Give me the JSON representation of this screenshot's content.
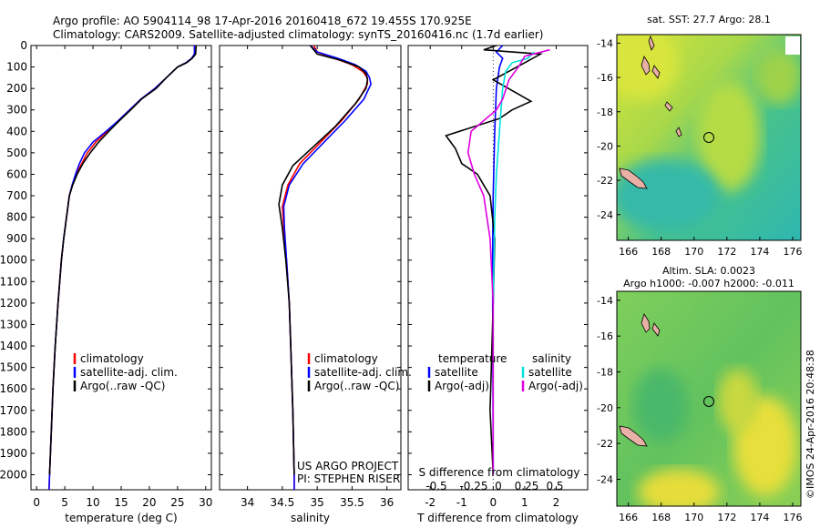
{
  "title": {
    "line1": "Argo profile: AO 5904114_98 17-Apr-2016 20160418_672 19.455S 170.925E",
    "line2": "Climatology: CARS2009. Satellite-adjusted climatology: synTS_20160416.nc (1.7d earlier)"
  },
  "colors": {
    "climatology": "#ff0000",
    "satellite": "#0000ff",
    "argo": "#000000",
    "sal_satellite": "#00e0e0",
    "sal_argo": "#e000e0"
  },
  "chart_data": [
    {
      "type": "line",
      "xlabel": "temperature (deg C)",
      "ylabel": "",
      "xlim": [
        -1,
        31
      ],
      "ylim": [
        2070,
        0
      ],
      "xticks": [
        0,
        5,
        10,
        15,
        20,
        25,
        30
      ],
      "yticks": [
        0,
        100,
        200,
        300,
        400,
        500,
        600,
        700,
        800,
        900,
        1000,
        1100,
        1200,
        1300,
        1400,
        1500,
        1600,
        1700,
        1800,
        1900,
        2000
      ],
      "legend": [
        "climatology",
        "satellite-adj. clim.",
        "Argo(..raw -QC)"
      ],
      "legend_position": "bottom-center",
      "series": [
        {
          "name": "climatology",
          "color": "#ff0000",
          "points": [
            [
              28,
              0
            ],
            [
              28,
              40
            ],
            [
              27.5,
              60
            ],
            [
              26.5,
              80
            ],
            [
              25,
              100
            ],
            [
              23,
              150
            ],
            [
              21,
              200
            ],
            [
              18.5,
              250
            ],
            [
              16.5,
              300
            ],
            [
              14.5,
              350
            ],
            [
              12.5,
              400
            ],
            [
              10.5,
              450
            ],
            [
              9,
              500
            ],
            [
              8,
              550
            ],
            [
              7,
              600
            ],
            [
              6.3,
              650
            ],
            [
              5.8,
              700
            ],
            [
              5.3,
              800
            ],
            [
              4.8,
              900
            ],
            [
              4.4,
              1000
            ],
            [
              3.8,
              1200
            ],
            [
              3.3,
              1400
            ],
            [
              2.9,
              1600
            ],
            [
              2.6,
              1800
            ],
            [
              2.3,
              2000
            ],
            [
              2.2,
              2070
            ]
          ]
        },
        {
          "name": "satellite-adj. clim.",
          "color": "#0000ff",
          "points": [
            [
              28,
              0
            ],
            [
              28,
              40
            ],
            [
              27.5,
              60
            ],
            [
              26.5,
              80
            ],
            [
              25,
              100
            ],
            [
              23,
              150
            ],
            [
              21,
              200
            ],
            [
              18.5,
              250
            ],
            [
              16.5,
              300
            ],
            [
              14.5,
              350
            ],
            [
              12.3,
              400
            ],
            [
              10,
              450
            ],
            [
              8.5,
              500
            ],
            [
              7.6,
              550
            ],
            [
              6.9,
              600
            ],
            [
              6.3,
              650
            ],
            [
              5.8,
              700
            ],
            [
              5.3,
              800
            ],
            [
              4.8,
              900
            ],
            [
              4.4,
              1000
            ],
            [
              3.8,
              1200
            ],
            [
              3.3,
              1400
            ],
            [
              2.9,
              1600
            ],
            [
              2.6,
              1800
            ],
            [
              2.3,
              2000
            ],
            [
              2.2,
              2070
            ]
          ]
        },
        {
          "name": "Argo(..raw -QC)",
          "color": "#000000",
          "points": [
            [
              28.3,
              0
            ],
            [
              28.2,
              40
            ],
            [
              27.6,
              60
            ],
            [
              26.6,
              80
            ],
            [
              25,
              100
            ],
            [
              23,
              150
            ],
            [
              21.2,
              200
            ],
            [
              18.6,
              250
            ],
            [
              16.7,
              300
            ],
            [
              14.7,
              350
            ],
            [
              12.8,
              400
            ],
            [
              11,
              450
            ],
            [
              9.5,
              500
            ],
            [
              8.2,
              550
            ],
            [
              7.2,
              600
            ],
            [
              6.4,
              650
            ],
            [
              5.8,
              700
            ],
            [
              5.3,
              800
            ],
            [
              4.8,
              900
            ],
            [
              4.4,
              1000
            ],
            [
              3.8,
              1200
            ],
            [
              3.3,
              1400
            ],
            [
              2.9,
              1600
            ],
            [
              2.6,
              1800
            ],
            [
              2.3,
              2000
            ]
          ]
        }
      ]
    },
    {
      "type": "line",
      "xlabel": "salinity",
      "xlim": [
        33.6,
        36.2
      ],
      "ylim": [
        2070,
        0
      ],
      "xticks": [
        34,
        34.5,
        35,
        35.5,
        36
      ],
      "legend": [
        "climatology",
        "satellite-adj. clim.",
        "Argo(..raw -QC)"
      ],
      "legend_position": "bottom-center",
      "annotation": [
        "US ARGO PROJECT",
        "PI: STEPHEN RISER"
      ],
      "series": [
        {
          "name": "climatology",
          "color": "#ff0000",
          "points": [
            [
              34.95,
              0
            ],
            [
              35,
              30
            ],
            [
              35.25,
              60
            ],
            [
              35.5,
              90
            ],
            [
              35.65,
              120
            ],
            [
              35.72,
              150
            ],
            [
              35.72,
              180
            ],
            [
              35.6,
              250
            ],
            [
              35.35,
              350
            ],
            [
              35.05,
              450
            ],
            [
              34.75,
              550
            ],
            [
              34.58,
              650
            ],
            [
              34.5,
              750
            ],
            [
              34.52,
              850
            ],
            [
              34.56,
              1000
            ],
            [
              34.6,
              1200
            ],
            [
              34.62,
              1400
            ],
            [
              34.65,
              1700
            ],
            [
              34.67,
              2000
            ],
            [
              34.67,
              2070
            ]
          ]
        },
        {
          "name": "satellite-adj. clim.",
          "color": "#0000ff",
          "points": [
            [
              34.9,
              0
            ],
            [
              35,
              30
            ],
            [
              35.3,
              60
            ],
            [
              35.55,
              90
            ],
            [
              35.7,
              120
            ],
            [
              35.75,
              150
            ],
            [
              35.77,
              180
            ],
            [
              35.67,
              250
            ],
            [
              35.4,
              350
            ],
            [
              35.1,
              450
            ],
            [
              34.8,
              550
            ],
            [
              34.6,
              650
            ],
            [
              34.52,
              750
            ],
            [
              34.53,
              850
            ],
            [
              34.56,
              1000
            ],
            [
              34.6,
              1200
            ],
            [
              34.62,
              1400
            ],
            [
              34.65,
              1700
            ],
            [
              34.67,
              2000
            ],
            [
              34.67,
              2070
            ]
          ]
        },
        {
          "name": "Argo(..raw -QC)",
          "color": "#000000",
          "points": [
            [
              34.9,
              0
            ],
            [
              35,
              40
            ],
            [
              35.35,
              70
            ],
            [
              35.6,
              100
            ],
            [
              35.7,
              130
            ],
            [
              35.72,
              160
            ],
            [
              35.7,
              200
            ],
            [
              35.55,
              270
            ],
            [
              35.25,
              380
            ],
            [
              34.95,
              470
            ],
            [
              34.65,
              560
            ],
            [
              34.5,
              650
            ],
            [
              34.45,
              740
            ],
            [
              34.5,
              850
            ],
            [
              34.55,
              1000
            ],
            [
              34.6,
              1200
            ],
            [
              34.62,
              1400
            ],
            [
              34.65,
              1700
            ],
            [
              34.67,
              2000
            ]
          ]
        }
      ]
    },
    {
      "type": "line",
      "xlabel": "T difference from climatology",
      "xlabel_top": "S difference from climatology",
      "xlim": [
        -2.7,
        3
      ],
      "ylim": [
        2070,
        0
      ],
      "xticks": [
        -2,
        -1,
        0,
        1,
        2
      ],
      "xticks_top": [
        "-0.5",
        "-0.25",
        "0",
        "0.25",
        "0.5"
      ],
      "legend_headers": [
        "temperature",
        "salinity"
      ],
      "legend": [
        "satellite",
        "Argo(-adj)",
        "satellite",
        "Argo(-adj)"
      ],
      "series": [
        {
          "name": "temperature satellite",
          "color": "#0000ff",
          "points": [
            [
              0.3,
              0
            ],
            [
              0.1,
              30
            ],
            [
              0.3,
              60
            ],
            [
              0.2,
              100
            ],
            [
              0.1,
              200
            ],
            [
              0.05,
              400
            ],
            [
              0,
              700
            ],
            [
              -0.02,
              1000
            ],
            [
              0,
              2000
            ]
          ]
        },
        {
          "name": "temperature Argo(-adj)",
          "color": "#000000",
          "points": [
            [
              0.1,
              0
            ],
            [
              -0.3,
              20
            ],
            [
              1.5,
              40
            ],
            [
              1,
              80
            ],
            [
              0.5,
              120
            ],
            [
              0,
              160
            ],
            [
              1.2,
              260
            ],
            [
              0.6,
              300
            ],
            [
              0.2,
              340
            ],
            [
              -1.5,
              420
            ],
            [
              -1.2,
              480
            ],
            [
              -1,
              550
            ],
            [
              -0.5,
              600
            ],
            [
              -0.3,
              650
            ],
            [
              -0.1,
              700
            ],
            [
              0.05,
              900
            ],
            [
              0,
              1200
            ],
            [
              -0.1,
              1700
            ],
            [
              0,
              2000
            ]
          ]
        },
        {
          "name": "salinity satellite",
          "color": "#00e0e0",
          "points": [
            [
              1.3,
              30
            ],
            [
              1.1,
              60
            ],
            [
              0.6,
              80
            ],
            [
              0.4,
              120
            ],
            [
              0.3,
              200
            ],
            [
              0.2,
              400
            ],
            [
              0.1,
              600
            ],
            [
              0.05,
              800
            ],
            [
              0,
              1200
            ],
            [
              0,
              2000
            ]
          ]
        },
        {
          "name": "salinity Argo(-adj)",
          "color": "#e000e0",
          "points": [
            [
              1.8,
              20
            ],
            [
              1,
              50
            ],
            [
              0.8,
              100
            ],
            [
              0.5,
              160
            ],
            [
              0.3,
              250
            ],
            [
              0.1,
              300
            ],
            [
              -0.7,
              400
            ],
            [
              -0.8,
              500
            ],
            [
              -0.6,
              600
            ],
            [
              -0.3,
              700
            ],
            [
              -0.1,
              900
            ],
            [
              0,
              1200
            ],
            [
              0,
              2000
            ]
          ]
        }
      ]
    },
    {
      "type": "heatmap",
      "title": "sat. SST: 27.7 Argo: 28.1",
      "xticks": [
        166,
        168,
        170,
        172,
        174,
        176
      ],
      "yticks": [
        -14,
        -16,
        -18,
        -20,
        -22,
        -24
      ],
      "marker": [
        170.925,
        -19.455
      ]
    },
    {
      "type": "heatmap",
      "title": [
        "Altim. SLA: 0.0023",
        "Argo h1000: -0.007 h2000: -0.011"
      ],
      "xticks": [
        166,
        168,
        170,
        172,
        174,
        176
      ],
      "yticks": [
        -14,
        -16,
        -18,
        -20,
        -22,
        -24
      ],
      "marker": [
        170.925,
        -19.455
      ],
      "side_label": "©IMOS 24-Apr-2016 20:48:38"
    }
  ]
}
